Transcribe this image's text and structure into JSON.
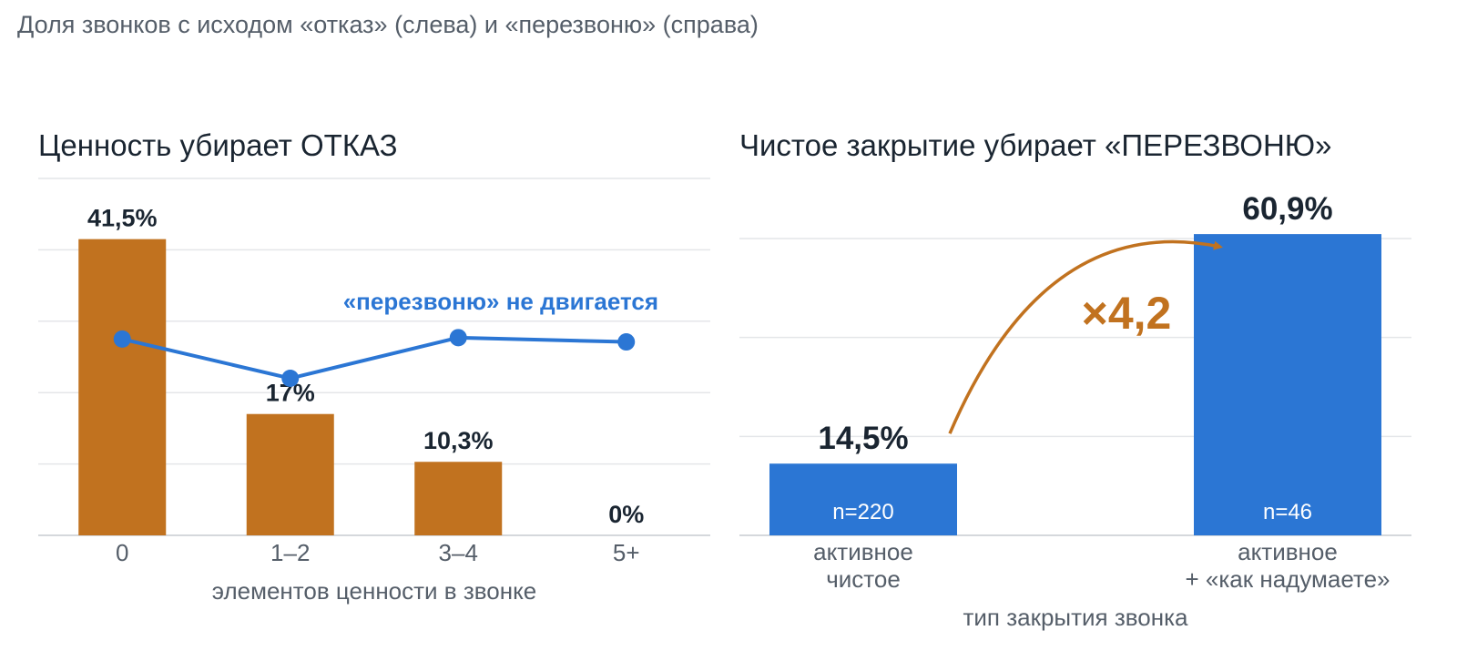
{
  "page_title": "Доля звонков с исходом «отказ» (слева) и «перезвоню» (справа)",
  "colors": {
    "orange": "#c1721f",
    "blue": "#2b76d4",
    "grid": "#e4e6e9",
    "text_dark": "#1a2531",
    "text_grey": "#555e69"
  },
  "chart_data": [
    {
      "type": "bar",
      "title": "Ценность убирает ОТКАЗ",
      "xlabel": "элементов ценности в звонке",
      "ylabel": "",
      "categories": [
        "0",
        "1–2",
        "3–4",
        "5+"
      ],
      "series": [
        {
          "name": "",
          "type": "bar",
          "values": [
            41.5,
            17,
            10.3,
            0
          ],
          "labels": [
            "41,5%",
            "17%",
            "10,3%",
            "0%"
          ],
          "color": "#c1721f"
        },
        {
          "name": "",
          "type": "line",
          "values": [
            27.5,
            22,
            27.7,
            27.1
          ],
          "color": "#2b76d4"
        }
      ],
      "ylim": [
        0,
        50
      ],
      "grid": true,
      "annotation": "«перезвоню» не двигается"
    },
    {
      "type": "bar",
      "title": "Чистое закрытие убирает «ПЕРЕЗВОНЮ»",
      "xlabel": "тип закрытия звонка",
      "ylabel": "",
      "categories": [
        [
          "активное",
          "чистое"
        ],
        [
          "активное",
          "+ «как надумаете»"
        ]
      ],
      "series": [
        {
          "name": "",
          "type": "bar",
          "values": [
            14.5,
            60.9
          ],
          "labels": [
            "14,5%",
            "60,9%"
          ],
          "n_labels": [
            "n=220",
            "n=46"
          ],
          "color": "#2b76d4"
        }
      ],
      "ylim": [
        0,
        60
      ],
      "grid": true,
      "annotation": "×4,2"
    }
  ]
}
